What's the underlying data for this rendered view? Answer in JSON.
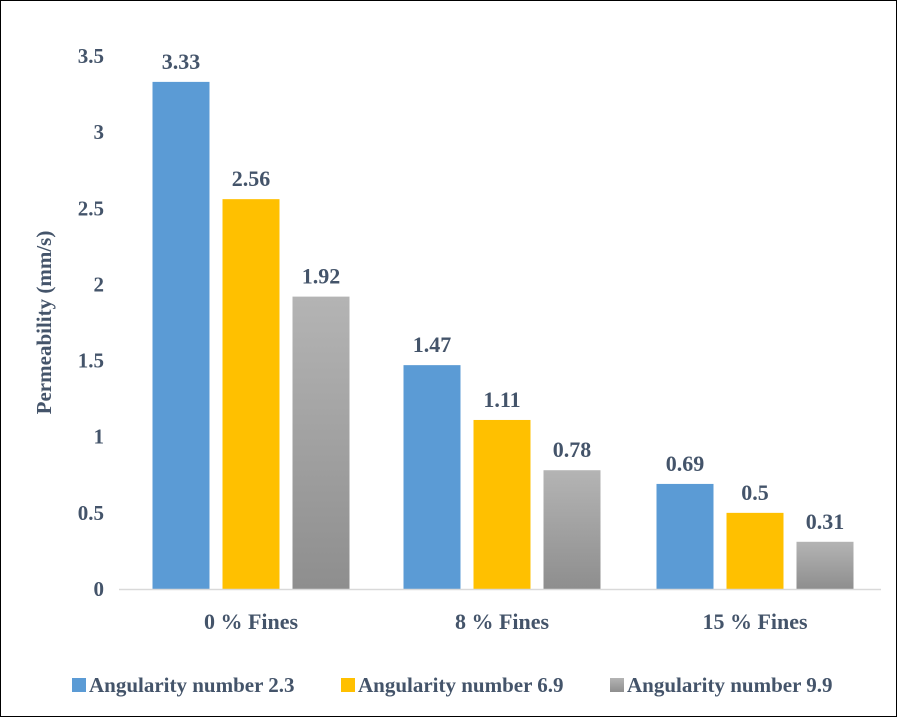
{
  "chart_data": {
    "type": "bar",
    "title": "",
    "xlabel": "",
    "ylabel": "Permeability (mm/s)",
    "categories": [
      "0 % Fines",
      "8 % Fines",
      "15 % Fines"
    ],
    "series": [
      {
        "name": "Angularity number 2.3",
        "values": [
          3.33,
          1.47,
          0.69
        ],
        "color": "#5b9bd5"
      },
      {
        "name": "Angularity number 6.9",
        "values": [
          2.56,
          1.11,
          0.5
        ],
        "color": "#ffc000"
      },
      {
        "name": "Angularity number 9.9",
        "values": [
          1.92,
          0.78,
          0.31
        ],
        "color": "#a5a5a5"
      }
    ],
    "value_labels": [
      [
        "3.33",
        "1.47",
        "0.69"
      ],
      [
        "2.56",
        "1.11",
        "0.5"
      ],
      [
        "1.92",
        "0.78",
        "0.31"
      ]
    ],
    "ylim": [
      0,
      3.5
    ],
    "yticks": [
      0,
      0.5,
      1,
      1.5,
      2,
      2.5,
      3,
      3.5
    ],
    "ytick_labels": [
      "0",
      "0.5",
      "1",
      "1.5",
      "2",
      "2.5",
      "3",
      "3.5"
    ],
    "grid": false,
    "legend": "bottom",
    "text_color": "#44546a"
  }
}
